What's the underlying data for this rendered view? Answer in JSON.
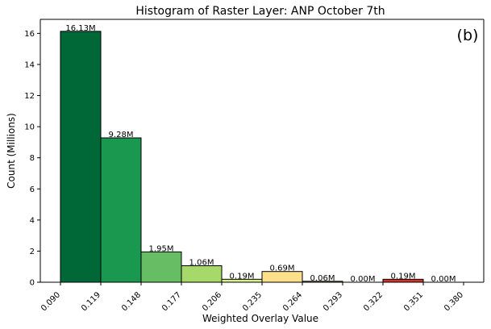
{
  "chart_data": {
    "type": "bar",
    "title": "Histogram of Raster Layer: ANP October 7th",
    "xlabel": "Weighted Overlay Value",
    "ylabel": "Count (Millions)",
    "annotation": "(b)",
    "x_ticks": [
      "0.090",
      "0.119",
      "0.148",
      "0.177",
      "0.206",
      "0.235",
      "0.264",
      "0.293",
      "0.322",
      "0.351",
      "0.380"
    ],
    "y_ticks": [
      "0",
      "2",
      "4",
      "6",
      "8",
      "10",
      "12",
      "14",
      "16"
    ],
    "ylim": [
      0,
      16.9
    ],
    "bins": [
      {
        "start": 0.09,
        "end": 0.119,
        "value": 16.13,
        "label": "16.13M",
        "color": "#006837"
      },
      {
        "start": 0.119,
        "end": 0.148,
        "value": 9.28,
        "label": "9.28M",
        "color": "#1a9850"
      },
      {
        "start": 0.148,
        "end": 0.177,
        "value": 1.95,
        "label": "1.95M",
        "color": "#66bd63"
      },
      {
        "start": 0.177,
        "end": 0.206,
        "value": 1.06,
        "label": "1.06M",
        "color": "#a6d96a"
      },
      {
        "start": 0.206,
        "end": 0.235,
        "value": 0.19,
        "label": "0.19M",
        "color": "#d9ef8b"
      },
      {
        "start": 0.235,
        "end": 0.264,
        "value": 0.69,
        "label": "0.69M",
        "color": "#fee08b"
      },
      {
        "start": 0.264,
        "end": 0.293,
        "value": 0.06,
        "label": "0.06M",
        "color": "#fdae61"
      },
      {
        "start": 0.293,
        "end": 0.322,
        "value": 0.0,
        "label": "0.00M",
        "color": "#f46d43"
      },
      {
        "start": 0.322,
        "end": 0.351,
        "value": 0.19,
        "label": "0.19M",
        "color": "#d73027"
      },
      {
        "start": 0.351,
        "end": 0.38,
        "value": 0.0,
        "label": "0.00M",
        "color": "#a50026"
      }
    ],
    "xlim": [
      0.0755,
      0.3945
    ],
    "grid": false,
    "legend": "none"
  }
}
